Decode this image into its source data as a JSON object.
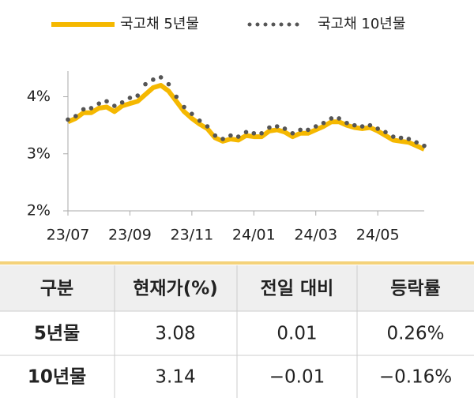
{
  "chart_data": {
    "type": "line",
    "categories": [
      "23/07",
      null,
      null,
      null,
      null,
      null,
      null,
      null,
      "23/09",
      null,
      null,
      null,
      null,
      null,
      null,
      null,
      "23/11",
      null,
      null,
      null,
      null,
      null,
      null,
      null,
      "24/01",
      null,
      null,
      null,
      null,
      null,
      null,
      null,
      "24/03",
      null,
      null,
      null,
      null,
      null,
      null,
      null,
      "24/05",
      null,
      null,
      null,
      null,
      null,
      null
    ],
    "series": [
      {
        "name": "국고채 5년물",
        "color": "#f5b800",
        "values": [
          3.56,
          3.62,
          3.72,
          3.72,
          3.8,
          3.82,
          3.74,
          3.84,
          3.88,
          3.92,
          4.04,
          4.16,
          4.2,
          4.1,
          3.92,
          3.74,
          3.62,
          3.52,
          3.44,
          3.28,
          3.22,
          3.26,
          3.24,
          3.32,
          3.3,
          3.3,
          3.4,
          3.42,
          3.38,
          3.3,
          3.36,
          3.36,
          3.42,
          3.48,
          3.56,
          3.56,
          3.5,
          3.46,
          3.44,
          3.46,
          3.4,
          3.32,
          3.24,
          3.22,
          3.2,
          3.14,
          3.08
        ]
      },
      {
        "name": "국고채 10년물",
        "color": "#555555",
        "values": [
          3.6,
          3.66,
          3.78,
          3.8,
          3.88,
          3.92,
          3.84,
          3.9,
          3.98,
          4.02,
          4.22,
          4.3,
          4.34,
          4.22,
          4.0,
          3.82,
          3.7,
          3.58,
          3.48,
          3.32,
          3.26,
          3.32,
          3.3,
          3.38,
          3.36,
          3.36,
          3.46,
          3.48,
          3.44,
          3.36,
          3.42,
          3.42,
          3.48,
          3.54,
          3.62,
          3.62,
          3.54,
          3.5,
          3.48,
          3.5,
          3.44,
          3.38,
          3.3,
          3.28,
          3.26,
          3.2,
          3.14
        ]
      }
    ],
    "ylim": [
      2,
      4.45
    ],
    "yticks": [
      {
        "value": 2,
        "label": "2%"
      },
      {
        "value": 3,
        "label": "3%"
      },
      {
        "value": 4,
        "label": "4%"
      }
    ]
  },
  "table": {
    "header": [
      "구분",
      "현재가(%)",
      "전일 대비",
      "등락률"
    ],
    "rows": [
      [
        "5년물",
        "3.08",
        "0.01",
        "0.26%"
      ],
      [
        "10년물",
        "3.14",
        "−0.01",
        "−0.16%"
      ]
    ]
  }
}
